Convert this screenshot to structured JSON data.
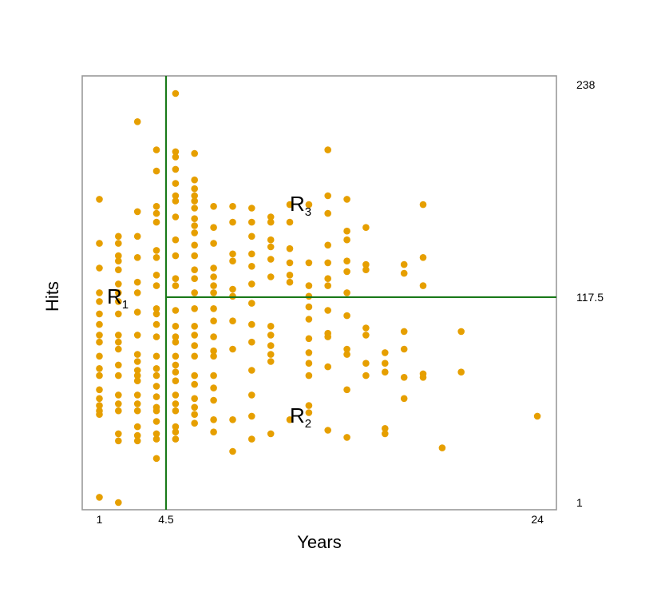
{
  "chart_data": {
    "type": "scatter",
    "title": "",
    "xlabel": "Years",
    "ylabel": "Hits",
    "xlim": [
      0.1,
      25.0
    ],
    "ylim": [
      1,
      238
    ],
    "x_ticks": [
      {
        "value": 1,
        "label": "1"
      },
      {
        "value": 4.5,
        "label": "4.5"
      },
      {
        "value": 24,
        "label": "24"
      }
    ],
    "right_ticks": [
      {
        "value": 238,
        "label": "238"
      },
      {
        "value": 117.5,
        "label": "117.5"
      },
      {
        "value": 1,
        "label": "1"
      }
    ],
    "splits": [
      {
        "orientation": "vertical",
        "x": 4.5,
        "y_range": [
          1,
          238
        ]
      },
      {
        "orientation": "horizontal",
        "y": 117.5,
        "x_range": [
          4.5,
          25.0
        ]
      }
    ],
    "regions": [
      {
        "base": "R",
        "sub": "1",
        "x": 1.4,
        "y": 117.5
      },
      {
        "base": "R",
        "sub": "2",
        "x": 11.0,
        "y": 50
      },
      {
        "base": "R",
        "sub": "3",
        "x": 11.0,
        "y": 170
      }
    ],
    "grid": false,
    "colors": {
      "points": "#E69F00",
      "split_lines": "#1A7A1A",
      "frame": "#999999"
    },
    "series": [
      {
        "points": [
          [
            1,
            173
          ],
          [
            1,
            148
          ],
          [
            1,
            134
          ],
          [
            1,
            120
          ],
          [
            1,
            115
          ],
          [
            1,
            108
          ],
          [
            1,
            102
          ],
          [
            1,
            96
          ],
          [
            1,
            92
          ],
          [
            1,
            84
          ],
          [
            1,
            77
          ],
          [
            1,
            73
          ],
          [
            1,
            65
          ],
          [
            1,
            60
          ],
          [
            1,
            56
          ],
          [
            1,
            53
          ],
          [
            1,
            51
          ],
          [
            1,
            4
          ],
          [
            2,
            152
          ],
          [
            2,
            148
          ],
          [
            2,
            141
          ],
          [
            2,
            138
          ],
          [
            2,
            133
          ],
          [
            2,
            125
          ],
          [
            2,
            120
          ],
          [
            2,
            115
          ],
          [
            2,
            108
          ],
          [
            2,
            96
          ],
          [
            2,
            92
          ],
          [
            2,
            88
          ],
          [
            2,
            79
          ],
          [
            2,
            73
          ],
          [
            2,
            62
          ],
          [
            2,
            57
          ],
          [
            2,
            53
          ],
          [
            2,
            40
          ],
          [
            2,
            36
          ],
          [
            2,
            1
          ],
          [
            3,
            217
          ],
          [
            3,
            166
          ],
          [
            3,
            152
          ],
          [
            3,
            140
          ],
          [
            3,
            126
          ],
          [
            3,
            120
          ],
          [
            3,
            109
          ],
          [
            3,
            96
          ],
          [
            3,
            85
          ],
          [
            3,
            81
          ],
          [
            3,
            76
          ],
          [
            3,
            73
          ],
          [
            3,
            70
          ],
          [
            3,
            62
          ],
          [
            3,
            57
          ],
          [
            3,
            53
          ],
          [
            3,
            44
          ],
          [
            3,
            39
          ],
          [
            3,
            36
          ],
          [
            4,
            201
          ],
          [
            4,
            189
          ],
          [
            4,
            169
          ],
          [
            4,
            165
          ],
          [
            4,
            160
          ],
          [
            4,
            144
          ],
          [
            4,
            140
          ],
          [
            4,
            130
          ],
          [
            4,
            124
          ],
          [
            4,
            111
          ],
          [
            4,
            108
          ],
          [
            4,
            102
          ],
          [
            4,
            95
          ],
          [
            4,
            84
          ],
          [
            4,
            77
          ],
          [
            4,
            73
          ],
          [
            4,
            67
          ],
          [
            4,
            61
          ],
          [
            4,
            55
          ],
          [
            4,
            53
          ],
          [
            4,
            47
          ],
          [
            4,
            40
          ],
          [
            4,
            37
          ],
          [
            4,
            26
          ],
          [
            5,
            233
          ],
          [
            5,
            200
          ],
          [
            5,
            197
          ],
          [
            5,
            190
          ],
          [
            5,
            182
          ],
          [
            5,
            175
          ],
          [
            5,
            172
          ],
          [
            5,
            163
          ],
          [
            5,
            150
          ],
          [
            5,
            141
          ],
          [
            5,
            128
          ],
          [
            5,
            124
          ],
          [
            5,
            110
          ],
          [
            5,
            101
          ],
          [
            5,
            95
          ],
          [
            5,
            92
          ],
          [
            5,
            84
          ],
          [
            5,
            79
          ],
          [
            5,
            75
          ],
          [
            5,
            70
          ],
          [
            5,
            62
          ],
          [
            5,
            57
          ],
          [
            5,
            53
          ],
          [
            5,
            44
          ],
          [
            5,
            41
          ],
          [
            5,
            37
          ],
          [
            6,
            199
          ],
          [
            6,
            184
          ],
          [
            6,
            179
          ],
          [
            6,
            175
          ],
          [
            6,
            172
          ],
          [
            6,
            168
          ],
          [
            6,
            162
          ],
          [
            6,
            158
          ],
          [
            6,
            154
          ],
          [
            6,
            147
          ],
          [
            6,
            141
          ],
          [
            6,
            133
          ],
          [
            6,
            128
          ],
          [
            6,
            120
          ],
          [
            6,
            111
          ],
          [
            6,
            101
          ],
          [
            6,
            96
          ],
          [
            6,
            90
          ],
          [
            6,
            84
          ],
          [
            6,
            73
          ],
          [
            6,
            68
          ],
          [
            6,
            60
          ],
          [
            6,
            55
          ],
          [
            6,
            51
          ],
          [
            6,
            46
          ],
          [
            7,
            169
          ],
          [
            7,
            157
          ],
          [
            7,
            148
          ],
          [
            7,
            134
          ],
          [
            7,
            129
          ],
          [
            7,
            124
          ],
          [
            7,
            120
          ],
          [
            7,
            111
          ],
          [
            7,
            104
          ],
          [
            7,
            95
          ],
          [
            7,
            87
          ],
          [
            7,
            84
          ],
          [
            7,
            73
          ],
          [
            7,
            66
          ],
          [
            7,
            59
          ],
          [
            7,
            48
          ],
          [
            7,
            41
          ],
          [
            8,
            169
          ],
          [
            8,
            160
          ],
          [
            8,
            142
          ],
          [
            8,
            138
          ],
          [
            8,
            122
          ],
          [
            8,
            118
          ],
          [
            8,
            104
          ],
          [
            8,
            88
          ],
          [
            8,
            48
          ],
          [
            8,
            30
          ],
          [
            9,
            168
          ],
          [
            9,
            160
          ],
          [
            9,
            152
          ],
          [
            9,
            142
          ],
          [
            9,
            135
          ],
          [
            9,
            125
          ],
          [
            9,
            114
          ],
          [
            9,
            102
          ],
          [
            9,
            92
          ],
          [
            9,
            76
          ],
          [
            9,
            62
          ],
          [
            9,
            50
          ],
          [
            9,
            37
          ],
          [
            10,
            163
          ],
          [
            10,
            160
          ],
          [
            10,
            150
          ],
          [
            10,
            146
          ],
          [
            10,
            139
          ],
          [
            10,
            129
          ],
          [
            10,
            101
          ],
          [
            10,
            96
          ],
          [
            10,
            90
          ],
          [
            10,
            85
          ],
          [
            10,
            81
          ],
          [
            10,
            40
          ],
          [
            11,
            170
          ],
          [
            11,
            160
          ],
          [
            11,
            145
          ],
          [
            11,
            137
          ],
          [
            11,
            130
          ],
          [
            11,
            126
          ],
          [
            11,
            48
          ],
          [
            12,
            170
          ],
          [
            12,
            137
          ],
          [
            12,
            124
          ],
          [
            12,
            118
          ],
          [
            12,
            112
          ],
          [
            12,
            105
          ],
          [
            12,
            94
          ],
          [
            12,
            86
          ],
          [
            12,
            80
          ],
          [
            12,
            73
          ],
          [
            12,
            56
          ],
          [
            12,
            52
          ],
          [
            13,
            201
          ],
          [
            13,
            175
          ],
          [
            13,
            165
          ],
          [
            13,
            147
          ],
          [
            13,
            137
          ],
          [
            13,
            128
          ],
          [
            13,
            124
          ],
          [
            13,
            110
          ],
          [
            13,
            97
          ],
          [
            13,
            95
          ],
          [
            13,
            78
          ],
          [
            13,
            42
          ],
          [
            14,
            173
          ],
          [
            14,
            155
          ],
          [
            14,
            150
          ],
          [
            14,
            138
          ],
          [
            14,
            132
          ],
          [
            14,
            120
          ],
          [
            14,
            107
          ],
          [
            14,
            88
          ],
          [
            14,
            85
          ],
          [
            14,
            65
          ],
          [
            14,
            38
          ],
          [
            15,
            157
          ],
          [
            15,
            136
          ],
          [
            15,
            133
          ],
          [
            15,
            100
          ],
          [
            15,
            96
          ],
          [
            15,
            80
          ],
          [
            15,
            73
          ],
          [
            16,
            86
          ],
          [
            16,
            80
          ],
          [
            16,
            75
          ],
          [
            16,
            43
          ],
          [
            16,
            40
          ],
          [
            17,
            136
          ],
          [
            17,
            131
          ],
          [
            17,
            98
          ],
          [
            17,
            88
          ],
          [
            17,
            72
          ],
          [
            17,
            60
          ],
          [
            18,
            170
          ],
          [
            18,
            140
          ],
          [
            18,
            124
          ],
          [
            18,
            74
          ],
          [
            18,
            72
          ],
          [
            19,
            32
          ],
          [
            20,
            98
          ],
          [
            20,
            75
          ],
          [
            24,
            50
          ]
        ]
      }
    ]
  }
}
